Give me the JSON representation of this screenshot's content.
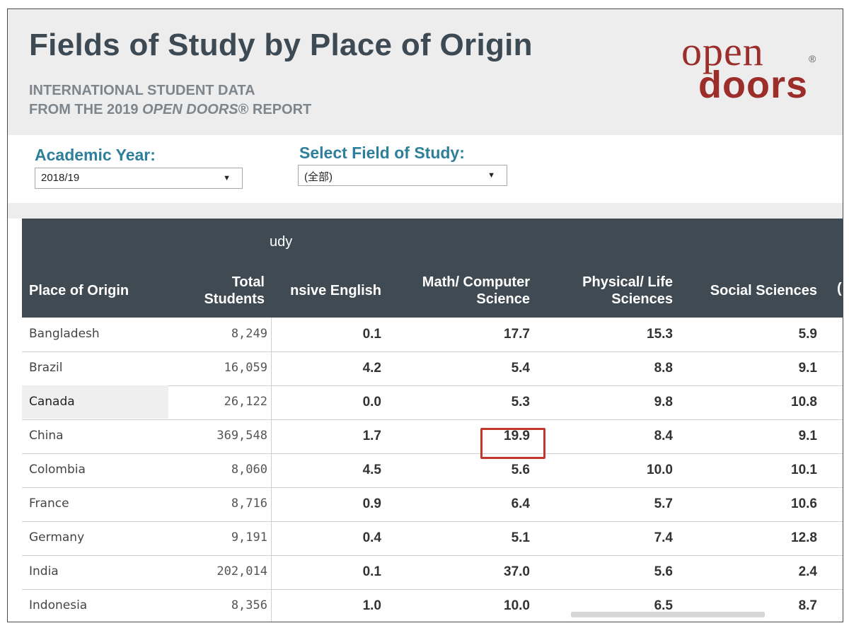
{
  "header": {
    "title": "Fields of Study by Place of Origin",
    "subtitle_line1": "INTERNATIONAL STUDENT DATA",
    "subtitle_line2_prefix": "FROM THE 2019 ",
    "subtitle_line2_italic": "OPEN DOORS",
    "subtitle_line2_suffix": "® REPORT",
    "logo_top": "open",
    "logo_reg": "®",
    "logo_bottom": "doors"
  },
  "filters": {
    "academic_year_label": "Academic Year:",
    "academic_year_value": "2018/19",
    "field_label": "Select Field of Study:",
    "field_value": "(全部)"
  },
  "table": {
    "group_header": "udy",
    "columns": {
      "place": "Place of Origin",
      "total_1": "Total",
      "total_2": "Students",
      "english": "nsive English",
      "math_1": "Math/ Computer",
      "math_2": "Science",
      "phys_1": "Physical/ Life",
      "phys_2": "Sciences",
      "social": "Social Sciences",
      "cut": "("
    },
    "rows": [
      {
        "country": "Bangladesh",
        "total": "8,249",
        "english": "0.1",
        "math": "17.7",
        "phys": "15.3",
        "social": "5.9"
      },
      {
        "country": "Brazil",
        "total": "16,059",
        "english": "4.2",
        "math": "5.4",
        "phys": "8.8",
        "social": "9.1"
      },
      {
        "country": "Canada",
        "total": "26,122",
        "english": "0.0",
        "math": "5.3",
        "phys": "9.8",
        "social": "10.8"
      },
      {
        "country": "China",
        "total": "369,548",
        "english": "1.7",
        "math": "19.9",
        "phys": "8.4",
        "social": "9.1"
      },
      {
        "country": "Colombia",
        "total": "8,060",
        "english": "4.5",
        "math": "5.6",
        "phys": "10.0",
        "social": "10.1"
      },
      {
        "country": "France",
        "total": "8,716",
        "english": "0.9",
        "math": "6.4",
        "phys": "5.7",
        "social": "10.6"
      },
      {
        "country": "Germany",
        "total": "9,191",
        "english": "0.4",
        "math": "5.1",
        "phys": "7.4",
        "social": "12.8"
      },
      {
        "country": "India",
        "total": "202,014",
        "english": "0.1",
        "math": "37.0",
        "phys": "5.6",
        "social": "2.4"
      },
      {
        "country": "Indonesia",
        "total": "8,356",
        "english": "1.0",
        "math": "10.0",
        "phys": "6.5",
        "social": "8.7"
      }
    ]
  },
  "colors": {
    "title": "#3d4a54",
    "accent_label": "#2e7f9a",
    "brand": "#9b2d2a",
    "header_bg": "#3f4a53",
    "highlight": "#c0392b"
  }
}
